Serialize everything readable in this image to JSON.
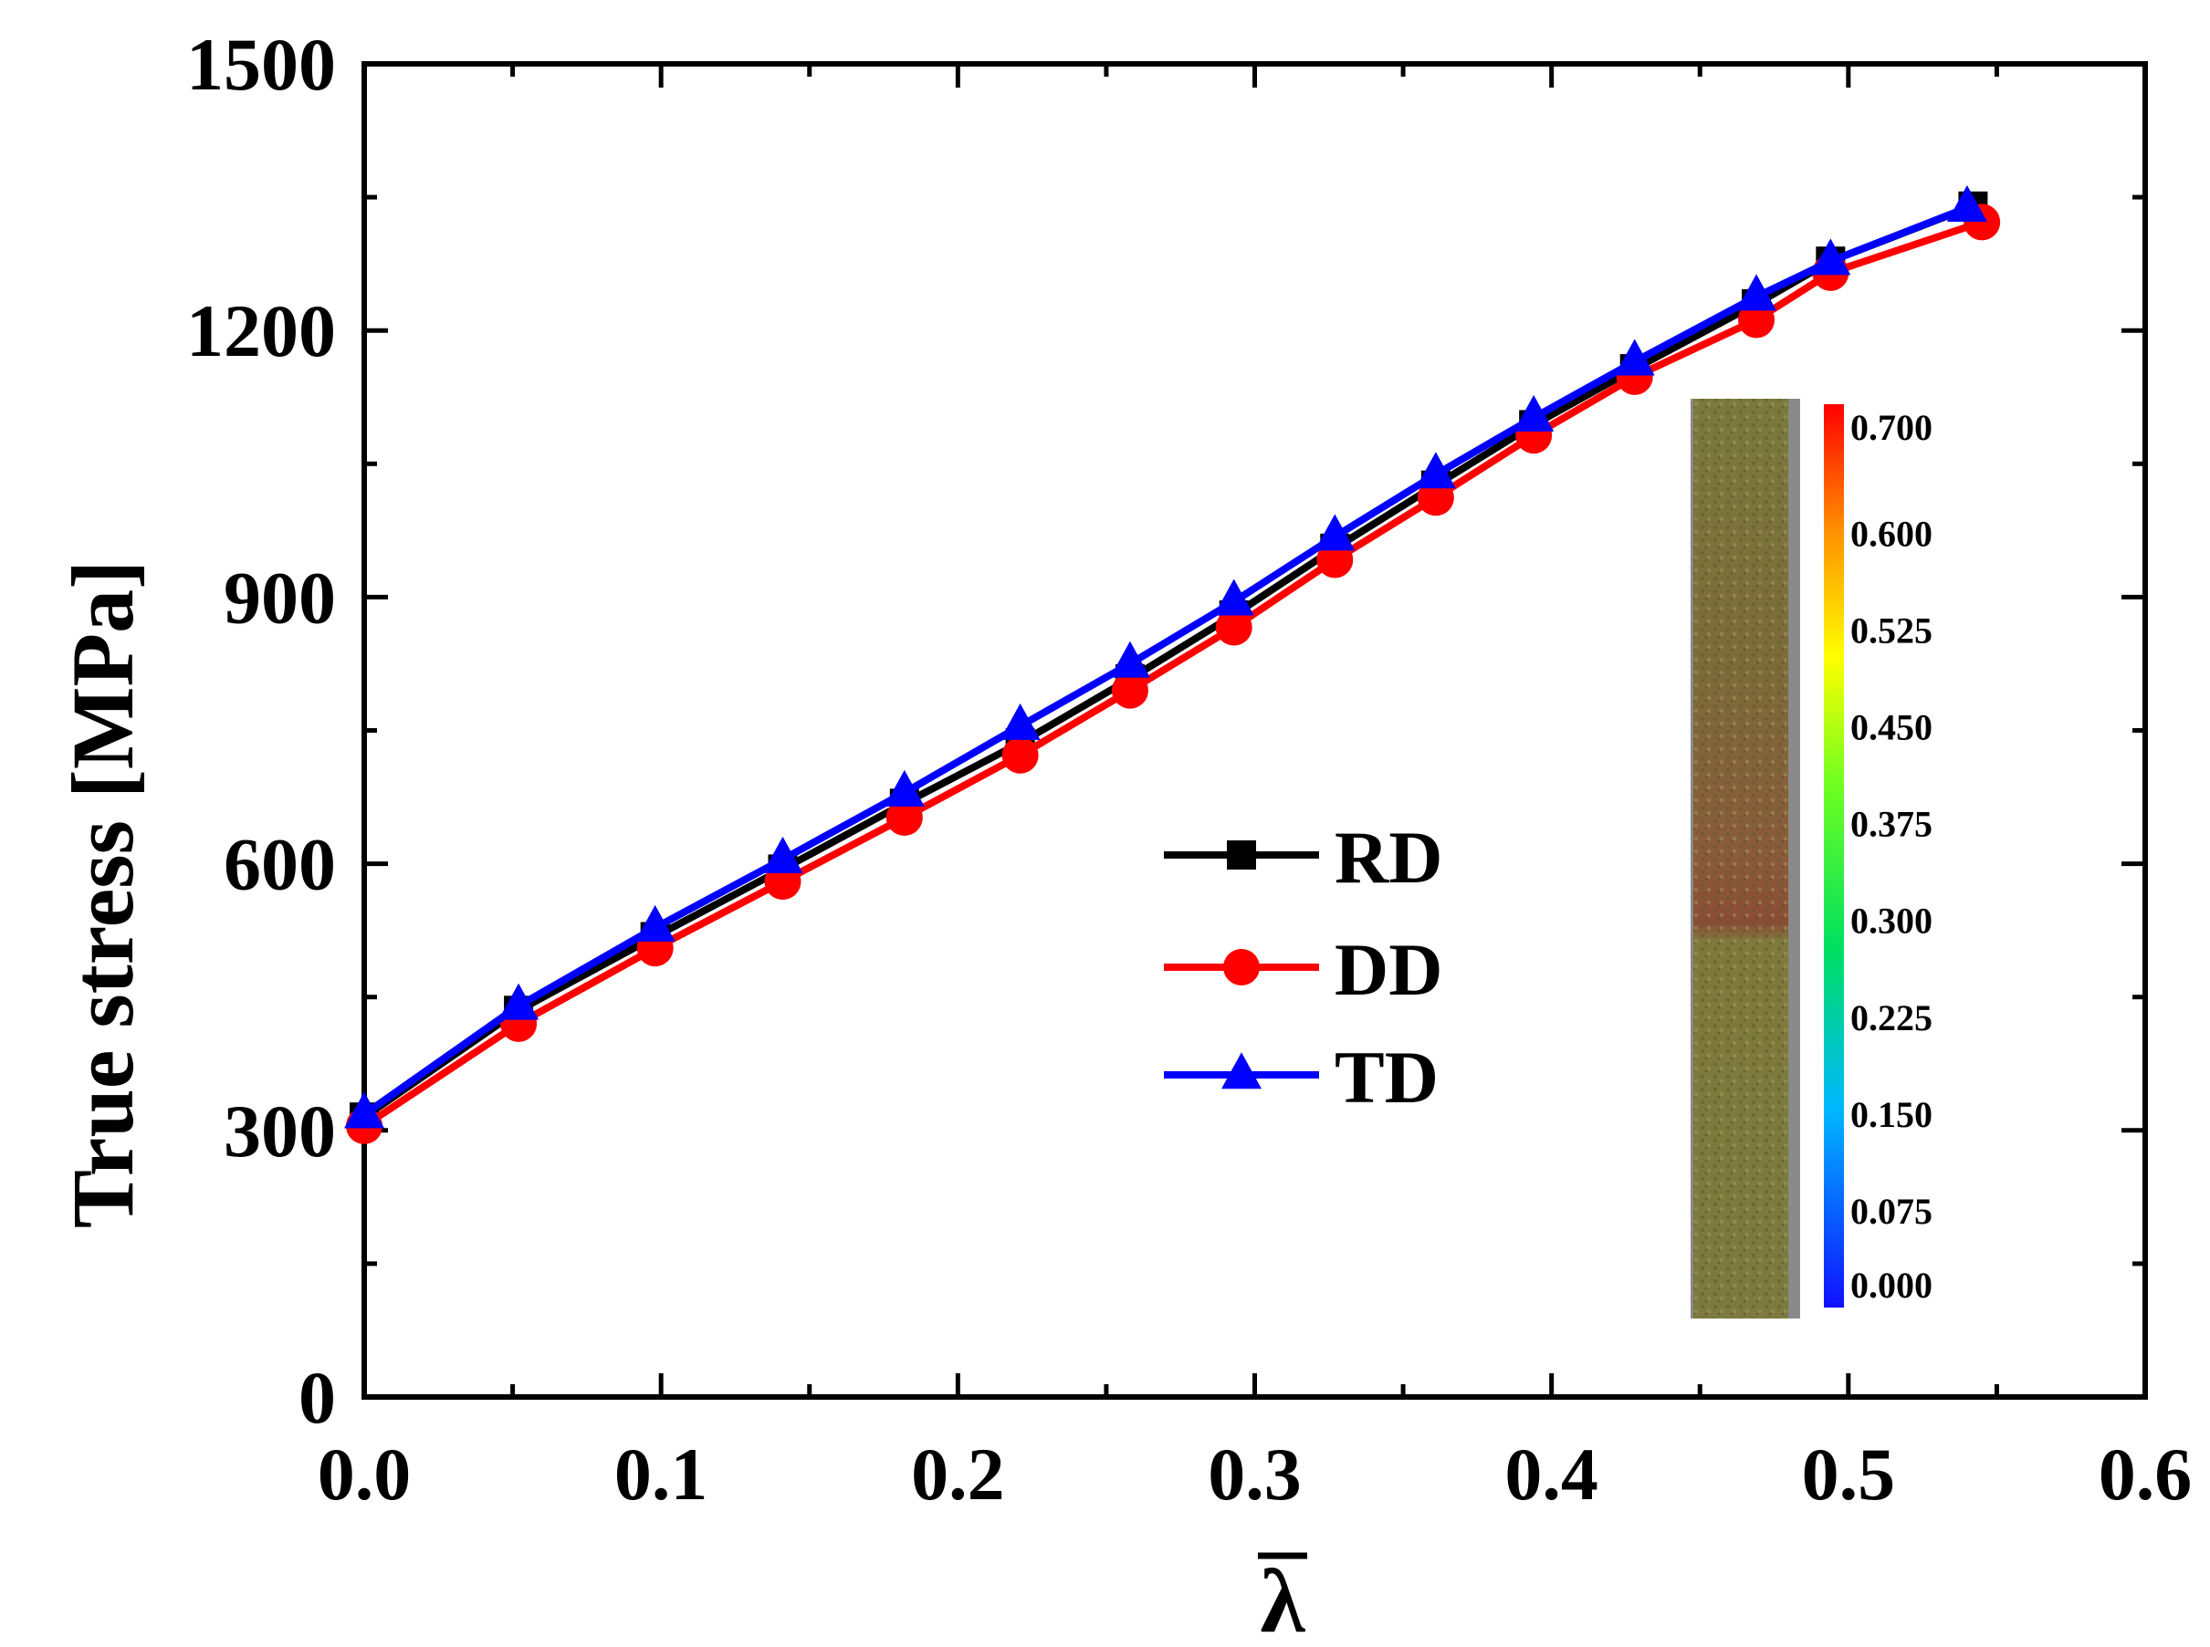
{
  "chart_data": {
    "type": "line",
    "title": "",
    "xlabel": "λ",
    "xlabel_overbar": true,
    "ylabel": "True stress [MPa]",
    "xlim": [
      0.0,
      0.6
    ],
    "ylim": [
      0,
      1500
    ],
    "x_ticks": [
      "0.0",
      "0.1",
      "0.2",
      "0.3",
      "0.4",
      "0.5",
      "0.6"
    ],
    "y_ticks": [
      "0",
      "300",
      "600",
      "900",
      "1200",
      "1500"
    ],
    "x_minor_step": 0.05,
    "y_minor_step": 150,
    "grid": false,
    "legend_position": "center",
    "series": [
      {
        "name": "RD",
        "color": "#000000",
        "marker": "square",
        "x": [
          0.0,
          0.052,
          0.098,
          0.141,
          0.182,
          0.221,
          0.258,
          0.293,
          0.327,
          0.361,
          0.394,
          0.428,
          0.469,
          0.494,
          0.542
        ],
        "y": [
          315,
          435,
          518,
          594,
          668,
          736,
          808,
          880,
          955,
          1026,
          1094,
          1157,
          1230,
          1278,
          1340
        ]
      },
      {
        "name": "DD",
        "color": "#ff0000",
        "marker": "circle",
        "x": [
          0.0,
          0.052,
          0.098,
          0.141,
          0.182,
          0.221,
          0.258,
          0.293,
          0.327,
          0.361,
          0.394,
          0.428,
          0.469,
          0.494,
          0.545
        ],
        "y": [
          305,
          420,
          505,
          580,
          652,
          722,
          795,
          866,
          942,
          1012,
          1082,
          1148,
          1212,
          1265,
          1322
        ]
      },
      {
        "name": "TD",
        "color": "#0000ff",
        "marker": "triangle",
        "x": [
          0.0,
          0.052,
          0.098,
          0.141,
          0.182,
          0.221,
          0.258,
          0.293,
          0.327,
          0.361,
          0.394,
          0.428,
          0.469,
          0.494,
          0.54
        ],
        "y": [
          318,
          440,
          528,
          605,
          680,
          755,
          825,
          895,
          968,
          1038,
          1102,
          1165,
          1238,
          1278,
          1338
        ]
      }
    ],
    "inset": {
      "description": "specimen strain contour image with colorbar",
      "colorbar_labels": [
        "0.700",
        "0.600",
        "0.525",
        "0.450",
        "0.375",
        "0.300",
        "0.225",
        "0.150",
        "0.075",
        "0.000"
      ],
      "colorbar_values": [
        0.7,
        0.6,
        0.525,
        0.45,
        0.375,
        0.3,
        0.225,
        0.15,
        0.075,
        0.0
      ]
    }
  }
}
